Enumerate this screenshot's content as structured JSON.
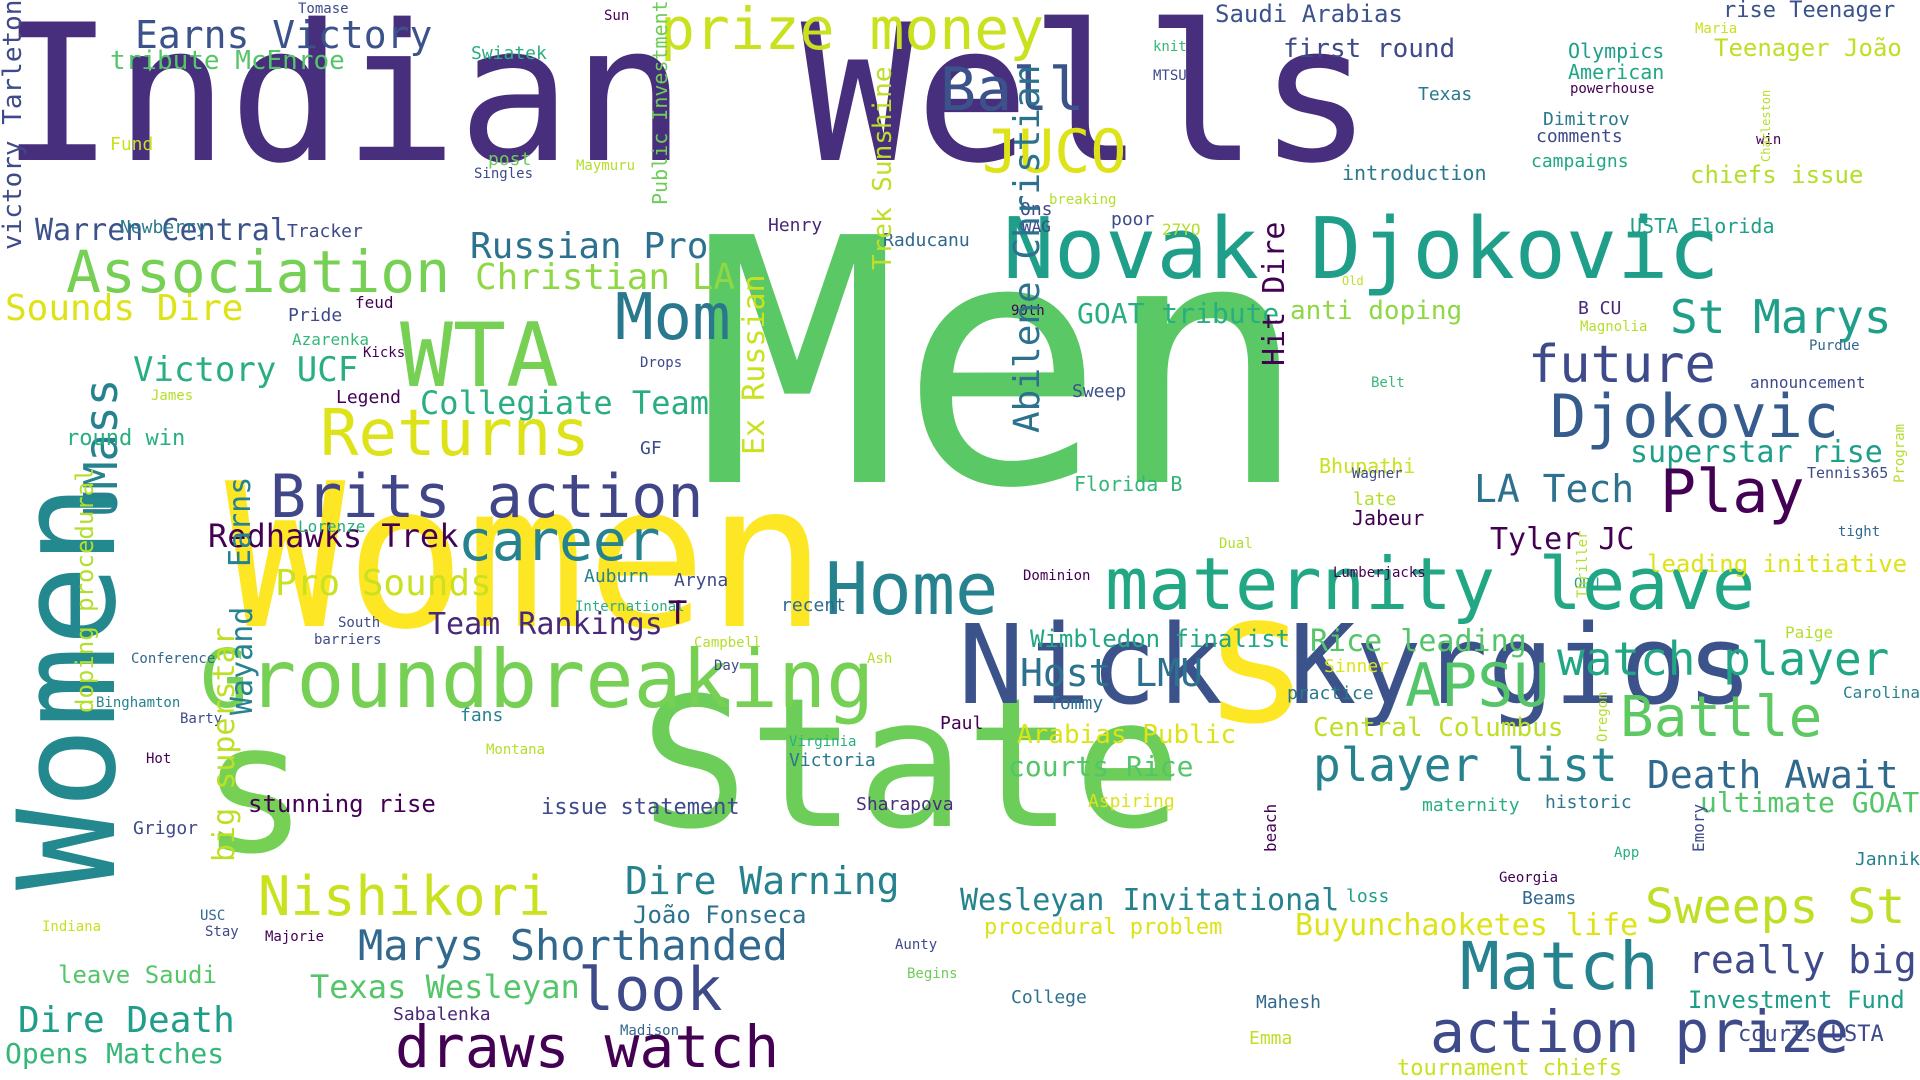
{
  "colors": [
    "#440154",
    "#482878",
    "#3e4a89",
    "#31688e",
    "#26828e",
    "#1f9e89",
    "#35b779",
    "#6dcd59",
    "#b4de2c",
    "#fde725"
  ],
  "words": [
    {
      "text": "Men",
      "color": "#5ac864"
    },
    {
      "text": "Indian Wells",
      "color": "#472f7d"
    },
    {
      "text": "Women",
      "color": "#fde725"
    },
    {
      "text": "State",
      "color": "#6dcd59"
    },
    {
      "text": "Women",
      "color": "#23898e"
    },
    {
      "text": "Nick Kyrgios",
      "color": "#3b528b"
    },
    {
      "text": "Groundbreaking",
      "color": "#75d054"
    },
    {
      "text": "Novak Djokovic",
      "color": "#1f9e89"
    },
    {
      "text": "maternity leave",
      "color": "#22a785"
    },
    {
      "text": "s",
      "color": "#fde725"
    },
    {
      "text": "s",
      "color": "#75d054"
    },
    {
      "text": "Home",
      "color": "#26828e"
    },
    {
      "text": "WTA",
      "color": "#75d054"
    },
    {
      "text": "Association",
      "color": "#75d054"
    },
    {
      "text": "Returns",
      "color": "#dde318"
    },
    {
      "text": "Brits action",
      "color": "#404688"
    },
    {
      "text": "career",
      "color": "#26828e"
    },
    {
      "text": "Match",
      "color": "#26828e"
    },
    {
      "text": "action prize",
      "color": "#3e4a89"
    },
    {
      "text": "draws watch",
      "color": "#440154"
    },
    {
      "text": "prize money",
      "color": "#cae11f"
    },
    {
      "text": "Play",
      "color": "#440154"
    },
    {
      "text": "Djokovic",
      "color": "#365c8d"
    },
    {
      "text": "Mom",
      "color": "#2a788e"
    },
    {
      "text": "look",
      "color": "#3e4a89"
    },
    {
      "text": "Nishikori",
      "color": "#cae11f"
    },
    {
      "text": "Ball",
      "color": "#3b528b"
    },
    {
      "text": "JUCO",
      "color": "#dde318"
    },
    {
      "text": "future",
      "color": "#3e4a89"
    },
    {
      "text": "St Marys",
      "color": "#1f9e89"
    },
    {
      "text": "Battle",
      "color": "#5ec962"
    },
    {
      "text": "APSU",
      "color": "#54c568"
    },
    {
      "text": "watch player",
      "color": "#22a785"
    },
    {
      "text": "player list",
      "color": "#26828e"
    },
    {
      "text": "Sweeps St",
      "color": "#bddf26"
    },
    {
      "text": "Marys Shorthanded",
      "color": "#31688e"
    },
    {
      "text": "UMass",
      "color": "#26828e"
    },
    {
      "text": "Earns Victory",
      "color": "#3b528b"
    },
    {
      "text": "Death Await",
      "color": "#31688e"
    },
    {
      "text": "really big",
      "color": "#3e4a89"
    },
    {
      "text": "LA Tech",
      "color": "#2c728e"
    },
    {
      "text": "Dire Warning",
      "color": "#26828e"
    },
    {
      "text": "Host LMU",
      "color": "#2c728e"
    },
    {
      "text": "Russian Pro",
      "color": "#2c728e"
    },
    {
      "text": "Christian LA",
      "color": "#8fd744"
    },
    {
      "text": "Collegiate Team",
      "color": "#29af7f"
    },
    {
      "text": "Victory UCF",
      "color": "#29af7f"
    },
    {
      "text": "Sounds Dire",
      "color": "#dde318"
    },
    {
      "text": "Warren Central",
      "color": "#3b528b"
    },
    {
      "text": "Redhawks Trek",
      "color": "#440154"
    },
    {
      "text": "Pro Sounds",
      "color": "#cae11f"
    },
    {
      "text": "Team Rankings",
      "color": "#482878"
    },
    {
      "text": "Texas Wesleyan",
      "color": "#54c568"
    },
    {
      "text": "Dire Death",
      "color": "#1f9e89"
    },
    {
      "text": "Opens Matches",
      "color": "#35b779"
    },
    {
      "text": "Wesleyan Invitational",
      "color": "#26828e"
    },
    {
      "text": "Buyunchaoketes life",
      "color": "#dde318"
    },
    {
      "text": "João Fonseca",
      "color": "#2c728e"
    },
    {
      "text": "stunning rise",
      "color": "#440154"
    },
    {
      "text": "superstar rise",
      "color": "#1f9e89"
    },
    {
      "text": "Tyler JC",
      "color": "#440154"
    },
    {
      "text": "Wimbledon finalist",
      "color": "#22a785"
    },
    {
      "text": "Rice leading",
      "color": "#54c568"
    },
    {
      "text": "Central Columbus",
      "color": "#bddf26"
    },
    {
      "text": "courts Rice",
      "color": "#54c568"
    },
    {
      "text": "Arabias Public",
      "color": "#dde318"
    },
    {
      "text": "ultimate GOAT",
      "color": "#54c568"
    },
    {
      "text": "Investment Fund",
      "color": "#1f9e89"
    },
    {
      "text": "GOAT tribute",
      "color": "#29af7f"
    },
    {
      "text": "anti doping",
      "color": "#8fd744"
    },
    {
      "text": "first round",
      "color": "#3e4a89"
    },
    {
      "text": "Saudi Arabias",
      "color": "#3b528b"
    },
    {
      "text": "rise Teenager",
      "color": "#3b528b"
    },
    {
      "text": "Teenager João",
      "color": "#bddf26"
    },
    {
      "text": "tribute McEnroe",
      "color": "#54c568"
    },
    {
      "text": "leading initiative",
      "color": "#dde318"
    },
    {
      "text": "issue statement",
      "color": "#3e4a89"
    },
    {
      "text": "leave Saudi",
      "color": "#54c568"
    },
    {
      "text": "round win",
      "color": "#29af7f"
    },
    {
      "text": "procedural problem",
      "color": "#dde318"
    },
    {
      "text": "chiefs issue",
      "color": "#b4de2c"
    },
    {
      "text": "tournament chiefs",
      "color": "#cae11f"
    },
    {
      "text": "courts USTA",
      "color": "#3e4a89"
    },
    {
      "text": "Olympics",
      "color": "#1f9e89"
    },
    {
      "text": "American",
      "color": "#22a785"
    },
    {
      "text": "introduction",
      "color": "#2a788e"
    },
    {
      "text": "USTA Florida",
      "color": "#1f9e89"
    },
    {
      "text": "Dimitrov",
      "color": "#2a788e"
    },
    {
      "text": "comments",
      "color": "#3e4a89"
    },
    {
      "text": "campaigns",
      "color": "#22a785"
    },
    {
      "text": "Florida B",
      "color": "#35b779"
    },
    {
      "text": "Bhupathi",
      "color": "#cae11f"
    },
    {
      "text": "Jabeur",
      "color": "#440154"
    },
    {
      "text": "Texas",
      "color": "#2a788e"
    },
    {
      "text": "Sabalenka",
      "color": "#482878"
    },
    {
      "text": "Mahesh",
      "color": "#31688e"
    },
    {
      "text": "Sharapova",
      "color": "#472f7d"
    },
    {
      "text": "Victoria",
      "color": "#2a788e"
    },
    {
      "text": "historic",
      "color": "#2a788e"
    },
    {
      "text": "maternity",
      "color": "#29af7f"
    },
    {
      "text": "Beams",
      "color": "#31688e"
    },
    {
      "text": "Jannik",
      "color": "#26828e"
    },
    {
      "text": "Carolina",
      "color": "#26828e"
    },
    {
      "text": "loss",
      "color": "#1f9e89"
    },
    {
      "text": "practice",
      "color": "#2a788e"
    },
    {
      "text": "Sinner",
      "color": "#dde318"
    },
    {
      "text": "Paige",
      "color": "#b4de2c"
    },
    {
      "text": "College",
      "color": "#2c728e"
    },
    {
      "text": "Tommy",
      "color": "#2c728e"
    },
    {
      "text": "Paul",
      "color": "#440154"
    },
    {
      "text": "Aspiring",
      "color": "#dde318"
    },
    {
      "text": "Henry",
      "color": "#482878"
    },
    {
      "text": "poor",
      "color": "#3e4a89"
    },
    {
      "text": "Raducanu",
      "color": "#31688e"
    },
    {
      "text": "Ons",
      "color": "#3e4a89"
    },
    {
      "text": "WAG",
      "color": "#3e4a89"
    },
    {
      "text": "27YO",
      "color": "#b4de2c"
    },
    {
      "text": "B CU",
      "color": "#482878"
    },
    {
      "text": "Sweep",
      "color": "#3b528b"
    },
    {
      "text": "recent",
      "color": "#31688e"
    },
    {
      "text": "Aryna",
      "color": "#3e4a89"
    },
    {
      "text": "Auburn",
      "color": "#26828e"
    },
    {
      "text": "fans",
      "color": "#26828e"
    },
    {
      "text": "Grigor",
      "color": "#3e4a89"
    },
    {
      "text": "Emma",
      "color": "#bddf26"
    },
    {
      "text": "post",
      "color": "#6dcd59"
    },
    {
      "text": "Fund",
      "color": "#cae11f"
    },
    {
      "text": "Swiatek",
      "color": "#29af7f"
    },
    {
      "text": "Tracker",
      "color": "#3e4a89"
    },
    {
      "text": "Newberry",
      "color": "#2a788e"
    },
    {
      "text": "Azarenka",
      "color": "#35b779"
    },
    {
      "text": "Pride",
      "color": "#3e4a89"
    },
    {
      "text": "feud",
      "color": "#440154"
    },
    {
      "text": "Legend",
      "color": "#440154"
    },
    {
      "text": "GF",
      "color": "#3e4a89"
    },
    {
      "text": "Lorenze",
      "color": "#29af7f"
    },
    {
      "text": "Tennis365",
      "color": "#3e4a89"
    },
    {
      "text": "announcement",
      "color": "#3e4a89"
    },
    {
      "text": "tight",
      "color": "#31688e"
    },
    {
      "text": "Purdue",
      "color": "#31688e"
    },
    {
      "text": "Magnolia",
      "color": "#b4de2c"
    },
    {
      "text": "Dominion",
      "color": "#440154"
    },
    {
      "text": "Lumberjacks",
      "color": "#440154"
    },
    {
      "text": "late",
      "color": "#b4de2c"
    },
    {
      "text": "Wagner",
      "color": "#3e4a89"
    },
    {
      "text": "Dual",
      "color": "#b4de2c"
    },
    {
      "text": "Belt",
      "color": "#35b779"
    },
    {
      "text": "Old",
      "color": "#bddf26"
    },
    {
      "text": "90th",
      "color": "#440154"
    },
    {
      "text": "breaking",
      "color": "#b4de2c"
    },
    {
      "text": "knit",
      "color": "#35b779"
    },
    {
      "text": "MTSU",
      "color": "#3e4a89"
    },
    {
      "text": "Sun",
      "color": "#440154"
    },
    {
      "text": "Tomase",
      "color": "#3e4a89"
    },
    {
      "text": "Maymuru",
      "color": "#b4de2c"
    },
    {
      "text": "Singles",
      "color": "#3e4a89"
    },
    {
      "text": "Maria",
      "color": "#cae11f"
    },
    {
      "text": "powerhouse",
      "color": "#440154"
    },
    {
      "text": "win",
      "color": "#440154"
    },
    {
      "text": "Kicks",
      "color": "#440154"
    },
    {
      "text": "Drops",
      "color": "#3e4a89"
    },
    {
      "text": "James",
      "color": "#b4de2c"
    },
    {
      "text": "South",
      "color": "#3e4a89"
    },
    {
      "text": "barriers",
      "color": "#3e4a89"
    },
    {
      "text": "International",
      "color": "#29af7f"
    },
    {
      "text": "Campbell",
      "color": "#b4de2c"
    },
    {
      "text": "Day",
      "color": "#3e4a89"
    },
    {
      "text": "Conference",
      "color": "#31688e"
    },
    {
      "text": "Ash",
      "color": "#b4de2c"
    },
    {
      "text": "Binghamton",
      "color": "#26828e"
    },
    {
      "text": "Barty",
      "color": "#3e4a89"
    },
    {
      "text": "Montana",
      "color": "#b4de2c"
    },
    {
      "text": "Virginia",
      "color": "#29af7f"
    },
    {
      "text": "Hot",
      "color": "#440154"
    },
    {
      "text": "USC",
      "color": "#31688e"
    },
    {
      "text": "Stay",
      "color": "#3e4a89"
    },
    {
      "text": "Indiana",
      "color": "#cae11f"
    },
    {
      "text": "Majorie",
      "color": "#440154"
    },
    {
      "text": "Aunty",
      "color": "#3e4a89"
    },
    {
      "text": "Begins",
      "color": "#6dcd59"
    },
    {
      "text": "Madison",
      "color": "#31688e"
    },
    {
      "text": "App",
      "color": "#29af7f"
    },
    {
      "text": "Georgia",
      "color": "#440154"
    },
    {
      "text": "ODU",
      "color": "#1f9e89"
    },
    {
      "text": "T",
      "color": "#440154"
    },
    {
      "text": "victory Tarleton",
      "color": "#3e4a89"
    },
    {
      "text": "Public Investment",
      "color": "#6dcd59"
    },
    {
      "text": "Trek Sunshine",
      "color": "#bddf26"
    },
    {
      "text": "Ex Russian",
      "color": "#cae11f"
    },
    {
      "text": "Abilene Christian",
      "color": "#2c728e"
    },
    {
      "text": "Hit Dire",
      "color": "#440154"
    },
    {
      "text": "Earns",
      "color": "#26828e"
    },
    {
      "text": "Wayand",
      "color": "#26828e"
    },
    {
      "text": "big superstar",
      "color": "#bddf26"
    },
    {
      "text": "doping procedural",
      "color": "#b4de2c"
    },
    {
      "text": "beach",
      "color": "#440154"
    },
    {
      "text": "Emory",
      "color": "#3e4a89"
    },
    {
      "text": "Thriller",
      "color": "#b4de2c"
    },
    {
      "text": "Oregon",
      "color": "#b4de2c"
    },
    {
      "text": "Charleston",
      "color": "#b4de2c"
    },
    {
      "text": "Program",
      "color": "#b4de2c"
    }
  ]
}
